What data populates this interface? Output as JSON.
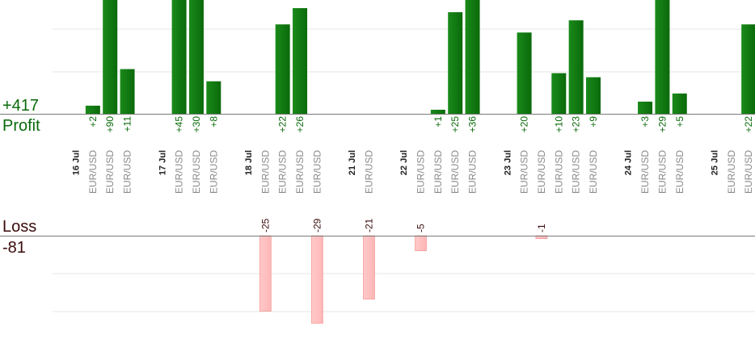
{
  "summary": {
    "profit_total": "+417",
    "profit_label": "Profit",
    "loss_label": "Loss",
    "loss_total": "-81"
  },
  "colors": {
    "profit_bar": "#0a6a0a",
    "profit_text": "#0a6a0a",
    "loss_bar": "#ffb6b6",
    "loss_text": "#3a0a0a",
    "grid": "#e6e6e6",
    "axis": "#7a7a7a",
    "slot_label": "#8a8a8a",
    "date_label": "#222222"
  },
  "chart_data": {
    "type": "bar",
    "title": "",
    "xlabel": "",
    "ylabel": "",
    "profit_ylim": [
      0,
      28
    ],
    "loss_ylim": [
      0,
      31
    ],
    "grid": true,
    "slots": [
      {
        "type": "date",
        "label": "16 Jul"
      },
      {
        "type": "trade",
        "label": "EUR/USD",
        "profit": 2
      },
      {
        "type": "trade",
        "label": "EUR/USD",
        "profit": 90
      },
      {
        "type": "trade",
        "label": "EUR/USD",
        "profit": 11
      },
      {
        "type": "gap"
      },
      {
        "type": "date",
        "label": "17 Jul"
      },
      {
        "type": "trade",
        "label": "EUR/USD",
        "profit": 45
      },
      {
        "type": "trade",
        "label": "EUR/USD",
        "profit": 30
      },
      {
        "type": "trade",
        "label": "EUR/USD",
        "profit": 8
      },
      {
        "type": "gap"
      },
      {
        "type": "date",
        "label": "18 Jul"
      },
      {
        "type": "trade",
        "label": "EUR/USD",
        "loss": 25
      },
      {
        "type": "trade",
        "label": "EUR/USD",
        "profit": 22
      },
      {
        "type": "trade",
        "label": "EUR/USD",
        "profit": 26
      },
      {
        "type": "trade",
        "label": "EUR/USD",
        "loss": 29
      },
      {
        "type": "gap"
      },
      {
        "type": "date",
        "label": "21 Jul"
      },
      {
        "type": "trade",
        "label": "EUR/USD",
        "loss": 21
      },
      {
        "type": "gap"
      },
      {
        "type": "date",
        "label": "22 Jul"
      },
      {
        "type": "trade",
        "label": "EUR/USD",
        "loss": 5
      },
      {
        "type": "trade",
        "label": "EUR/USD",
        "profit": 1
      },
      {
        "type": "trade",
        "label": "EUR/USD",
        "profit": 25
      },
      {
        "type": "trade",
        "label": "EUR/USD",
        "profit": 36
      },
      {
        "type": "gap"
      },
      {
        "type": "date",
        "label": "23 Jul"
      },
      {
        "type": "trade",
        "label": "EUR/USD",
        "profit": 20
      },
      {
        "type": "trade",
        "label": "EUR/USD",
        "loss": 1
      },
      {
        "type": "trade",
        "label": "EUR/USD",
        "profit": 10
      },
      {
        "type": "trade",
        "label": "EUR/USD",
        "profit": 23
      },
      {
        "type": "trade",
        "label": "EUR/USD",
        "profit": 9
      },
      {
        "type": "gap"
      },
      {
        "type": "date",
        "label": "24 Jul"
      },
      {
        "type": "trade",
        "label": "EUR/USD",
        "profit": 3
      },
      {
        "type": "trade",
        "label": "EUR/USD",
        "profit": 29
      },
      {
        "type": "trade",
        "label": "EUR/USD",
        "profit": 5
      },
      {
        "type": "gap"
      },
      {
        "type": "date",
        "label": "25 Jul"
      },
      {
        "type": "trade",
        "label": "EUR/USD"
      },
      {
        "type": "trade",
        "label": "EUR/USD",
        "profit": 22
      }
    ]
  }
}
